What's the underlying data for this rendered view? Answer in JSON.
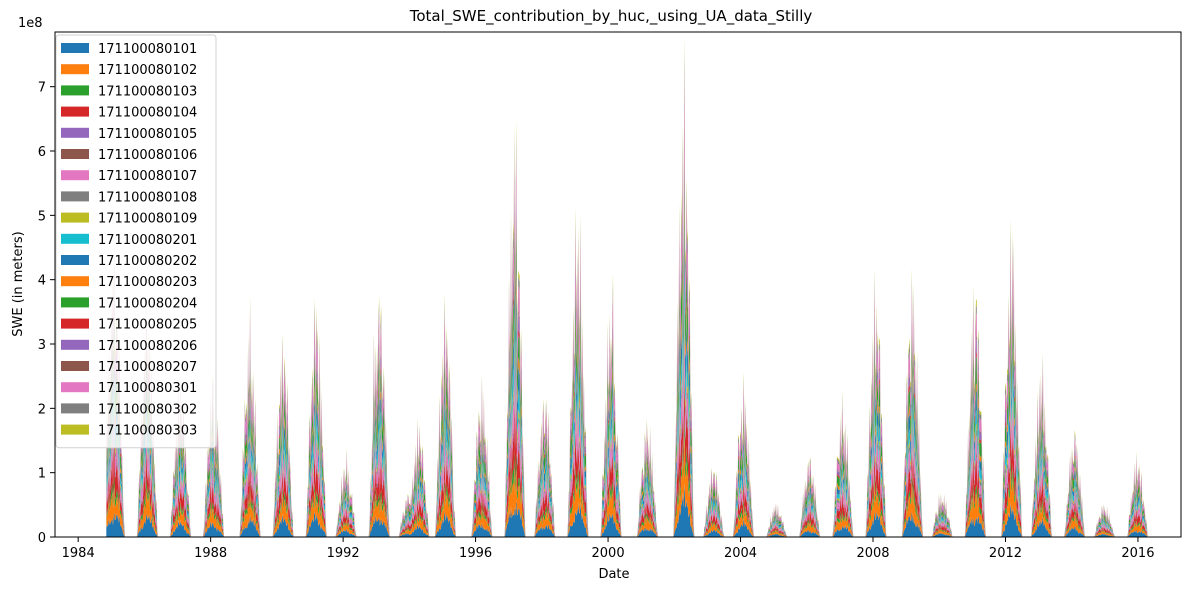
{
  "chart_data": {
    "type": "area",
    "title": "Total_SWE_contribution_by_huc,_using_UA_data_Stilly",
    "xlabel": "Date",
    "ylabel": "SWE (in meters)",
    "y_scale_label": "1e8",
    "y_multiplier": 100000000,
    "xlim": [
      1983.3,
      2017.3
    ],
    "ylim": [
      0,
      7.85
    ],
    "x_ticks": [
      1984,
      1988,
      1992,
      1996,
      2000,
      2004,
      2008,
      2012,
      2016
    ],
    "y_ticks": [
      0,
      1,
      2,
      3,
      4,
      5,
      6,
      7
    ],
    "grid": false,
    "legend_position": "upper-left",
    "series": [
      {
        "name": "171100080101",
        "color": "#1f77b4",
        "share": 0.075
      },
      {
        "name": "171100080102",
        "color": "#ff7f0e",
        "share": 0.075
      },
      {
        "name": "171100080103",
        "color": "#2ca02c",
        "share": 0.03
      },
      {
        "name": "171100080104",
        "color": "#d62728",
        "share": 0.08
      },
      {
        "name": "171100080105",
        "color": "#9467bd",
        "share": 0.01
      },
      {
        "name": "171100080106",
        "color": "#8c564b",
        "share": 0.01
      },
      {
        "name": "171100080107",
        "color": "#e377c2",
        "share": 0.06
      },
      {
        "name": "171100080108",
        "color": "#7f7f7f",
        "share": 0.02
      },
      {
        "name": "171100080109",
        "color": "#bcbd22",
        "share": 0.02
      },
      {
        "name": "171100080201",
        "color": "#17becf",
        "share": 0.05
      },
      {
        "name": "171100080202",
        "color": "#1f77b4",
        "share": 0.06
      },
      {
        "name": "171100080203",
        "color": "#ff7f0e",
        "share": 0.03
      },
      {
        "name": "171100080204",
        "color": "#2ca02c",
        "share": 0.08
      },
      {
        "name": "171100080205",
        "color": "#d62728",
        "share": 0.02
      },
      {
        "name": "171100080206",
        "color": "#9467bd",
        "share": 0.04
      },
      {
        "name": "171100080207",
        "color": "#8c564b",
        "share": 0.01
      },
      {
        "name": "171100080301",
        "color": "#e377c2",
        "share": 0.07
      },
      {
        "name": "171100080302",
        "color": "#7f7f7f",
        "share": 0.03
      },
      {
        "name": "171100080303",
        "color": "#bcbd22",
        "share": 0.02
      }
    ],
    "season_peaks": [
      {
        "year": 1985.1,
        "total": 4.7
      },
      {
        "year": 1986.1,
        "total": 3.8
      },
      {
        "year": 1987.1,
        "total": 2.6
      },
      {
        "year": 1988.1,
        "total": 2.6
      },
      {
        "year": 1989.2,
        "total": 3.45
      },
      {
        "year": 1990.2,
        "total": 3.3
      },
      {
        "year": 1991.2,
        "total": 3.95
      },
      {
        "year": 1992.1,
        "total": 1.3
      },
      {
        "year": 1993.1,
        "total": 4.2
      },
      {
        "year": 1994.0,
        "total": 0.75
      },
      {
        "year": 1994.3,
        "total": 1.9
      },
      {
        "year": 1995.1,
        "total": 3.85
      },
      {
        "year": 1996.2,
        "total": 2.55
      },
      {
        "year": 1997.2,
        "total": 6.75
      },
      {
        "year": 1998.1,
        "total": 2.45
      },
      {
        "year": 1999.1,
        "total": 5.5
      },
      {
        "year": 2000.1,
        "total": 3.9
      },
      {
        "year": 2001.2,
        "total": 1.95
      },
      {
        "year": 2002.3,
        "total": 7.4
      },
      {
        "year": 2003.2,
        "total": 1.2
      },
      {
        "year": 2004.1,
        "total": 2.5
      },
      {
        "year": 2005.1,
        "total": 0.55
      },
      {
        "year": 2006.1,
        "total": 1.35
      },
      {
        "year": 2007.1,
        "total": 2.25
      },
      {
        "year": 2008.1,
        "total": 4.15
      },
      {
        "year": 2009.2,
        "total": 4.25
      },
      {
        "year": 2010.1,
        "total": 0.75
      },
      {
        "year": 2011.1,
        "total": 4.2
      },
      {
        "year": 2012.2,
        "total": 5.0
      },
      {
        "year": 2013.1,
        "total": 2.85
      },
      {
        "year": 2014.1,
        "total": 1.75
      },
      {
        "year": 2015.0,
        "total": 0.55
      },
      {
        "year": 2016.0,
        "total": 1.35
      }
    ]
  }
}
